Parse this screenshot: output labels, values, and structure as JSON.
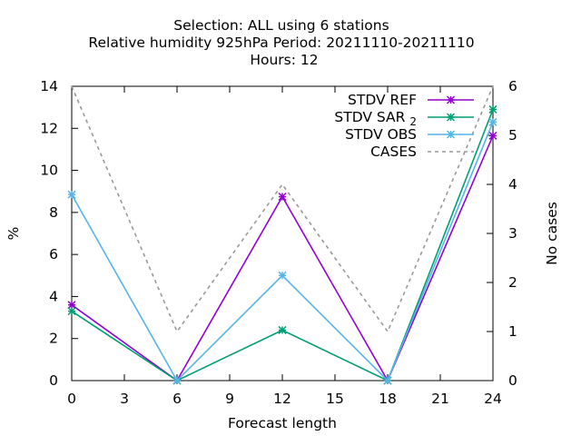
{
  "title": {
    "line1": "Selection: ALL using     6 stations",
    "line2": "Relative humidity 925hPa   Period: 20211110-20211110",
    "line3": "Hours:  12"
  },
  "chart_data": {
    "type": "line",
    "title": "Selection: ALL using 6 stations / Relative humidity 925hPa Period: 20211110-20211110 / Hours: 12",
    "xlabel": "Forecast length",
    "ylabel": "%",
    "y2label": "No cases",
    "xlim": [
      0,
      24
    ],
    "ylim": [
      0,
      14
    ],
    "y2lim": [
      0,
      6
    ],
    "xticks": [
      "0",
      "3",
      "6",
      "9",
      "12",
      "15",
      "18",
      "21",
      "24"
    ],
    "yticks": [
      "0",
      "2",
      "4",
      "6",
      "8",
      "10",
      "12",
      "14"
    ],
    "y2ticks": [
      "0",
      "1",
      "2",
      "3",
      "4",
      "5",
      "6"
    ],
    "legend_position": "top-right",
    "grid": false,
    "x": [
      0,
      6,
      12,
      18,
      24
    ],
    "series": [
      {
        "name": "STDV REF",
        "axis": "y1",
        "color": "#9400d3",
        "style": "solid",
        "marker": "star",
        "values": [
          3.6,
          0,
          8.75,
          0,
          11.65
        ]
      },
      {
        "name": "STDV SAR_2",
        "axis": "y1",
        "color": "#009e73",
        "style": "solid",
        "marker": "star",
        "values": [
          3.3,
          0,
          2.4,
          0,
          12.9
        ]
      },
      {
        "name": "STDV OBS",
        "axis": "y1",
        "color": "#56b4e9",
        "style": "solid",
        "marker": "star",
        "values": [
          8.85,
          0,
          5.0,
          0,
          12.3
        ]
      },
      {
        "name": "CASES",
        "axis": "y2",
        "color": "#999999",
        "style": "dashed",
        "marker": "none",
        "values": [
          6,
          1,
          4,
          1,
          6
        ]
      }
    ]
  }
}
